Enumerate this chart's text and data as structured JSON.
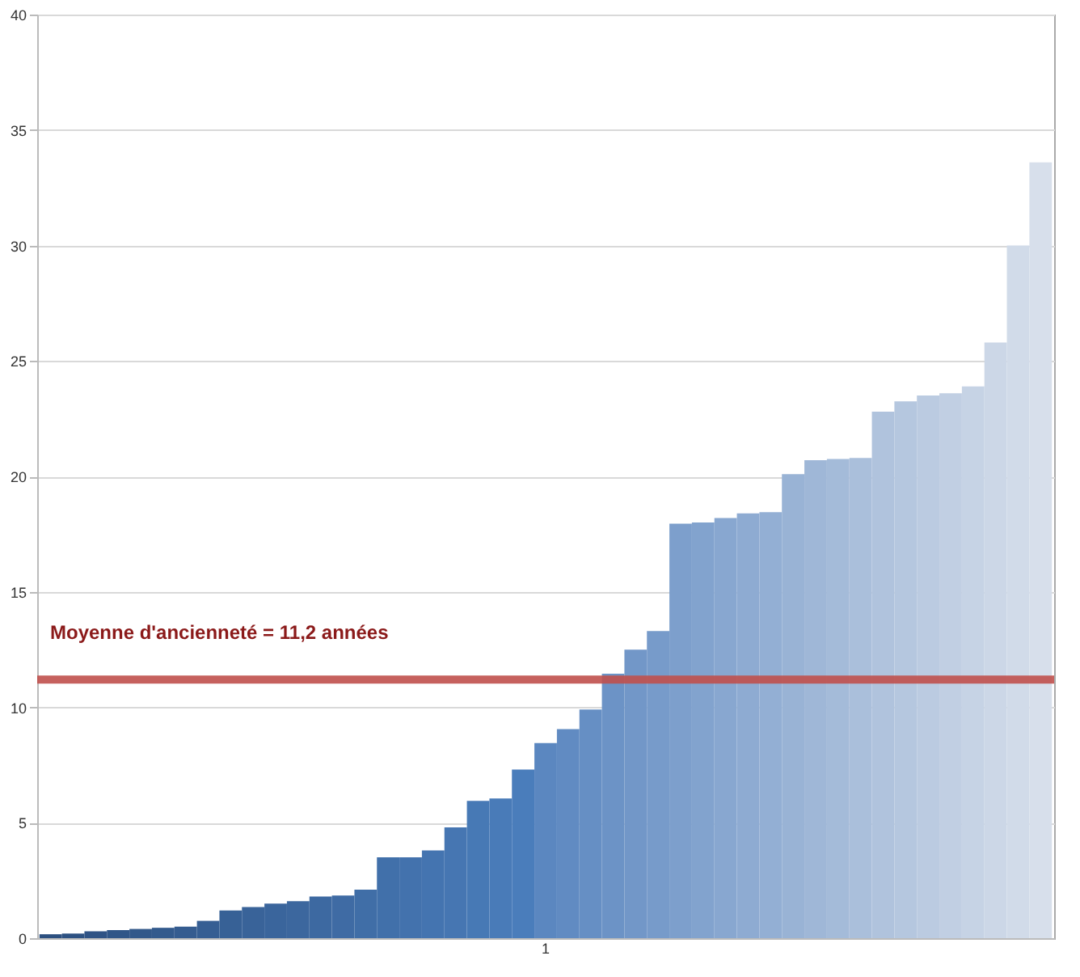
{
  "chart_data": {
    "type": "bar",
    "categories": [
      null,
      null,
      null,
      null,
      null,
      null,
      null,
      null,
      null,
      null,
      null,
      null,
      null,
      null,
      null,
      null,
      null,
      null,
      null,
      null,
      null,
      null,
      "1",
      null,
      null,
      null,
      null,
      null,
      null,
      null,
      null,
      null,
      null,
      null,
      null,
      null,
      null,
      null,
      null,
      null,
      null,
      null,
      null,
      null,
      null
    ],
    "values": [
      0.17,
      0.2,
      0.3,
      0.35,
      0.4,
      0.45,
      0.5,
      0.75,
      1.2,
      1.35,
      1.5,
      1.6,
      1.8,
      1.85,
      2.1,
      3.5,
      3.5,
      3.8,
      4.8,
      5.95,
      6.05,
      7.3,
      8.45,
      9.05,
      9.9,
      11.45,
      12.5,
      13.3,
      17.95,
      18.0,
      18.2,
      18.4,
      18.45,
      20.1,
      20.7,
      20.75,
      20.8,
      22.8,
      23.25,
      23.5,
      23.6,
      23.9,
      25.8,
      30.0,
      33.6
    ],
    "colors": [
      "#2c4f7f",
      "#2d5182",
      "#2f5385",
      "#305688",
      "#32588a",
      "#335a8d",
      "#355c90",
      "#365e93",
      "#376196",
      "#396399",
      "#3a659c",
      "#3c679e",
      "#3d69a1",
      "#3f6ba4",
      "#406ea7",
      "#4170aa",
      "#4372ad",
      "#4474b0",
      "#4676b2",
      "#4779b5",
      "#497bb8",
      "#4a7dbb",
      "#5b87c0",
      "#618bc2",
      "#668fc4",
      "#6c93c6",
      "#7297c8",
      "#779bca",
      "#7d9fcc",
      "#82a3ce",
      "#88a7d0",
      "#8eabd2",
      "#93afd4",
      "#99b3d5",
      "#9fb7d7",
      "#a4bbd9",
      "#aabfdb",
      "#b0c3dd",
      "#b5c7df",
      "#bbcbe1",
      "#c1cfe3",
      "#c6d3e5",
      "#ccd7e7",
      "#d1dbe9",
      "#d7dfeb"
    ],
    "ylim": [
      0,
      40
    ],
    "yticks": [
      0,
      5,
      10,
      15,
      20,
      25,
      30,
      35,
      40
    ],
    "grid": "y",
    "ref_lines": [
      {
        "axis": "y",
        "value": 11.2,
        "label": "Moyenne d'ancienneté = 11,2 années",
        "color": "#c0504d"
      }
    ]
  }
}
